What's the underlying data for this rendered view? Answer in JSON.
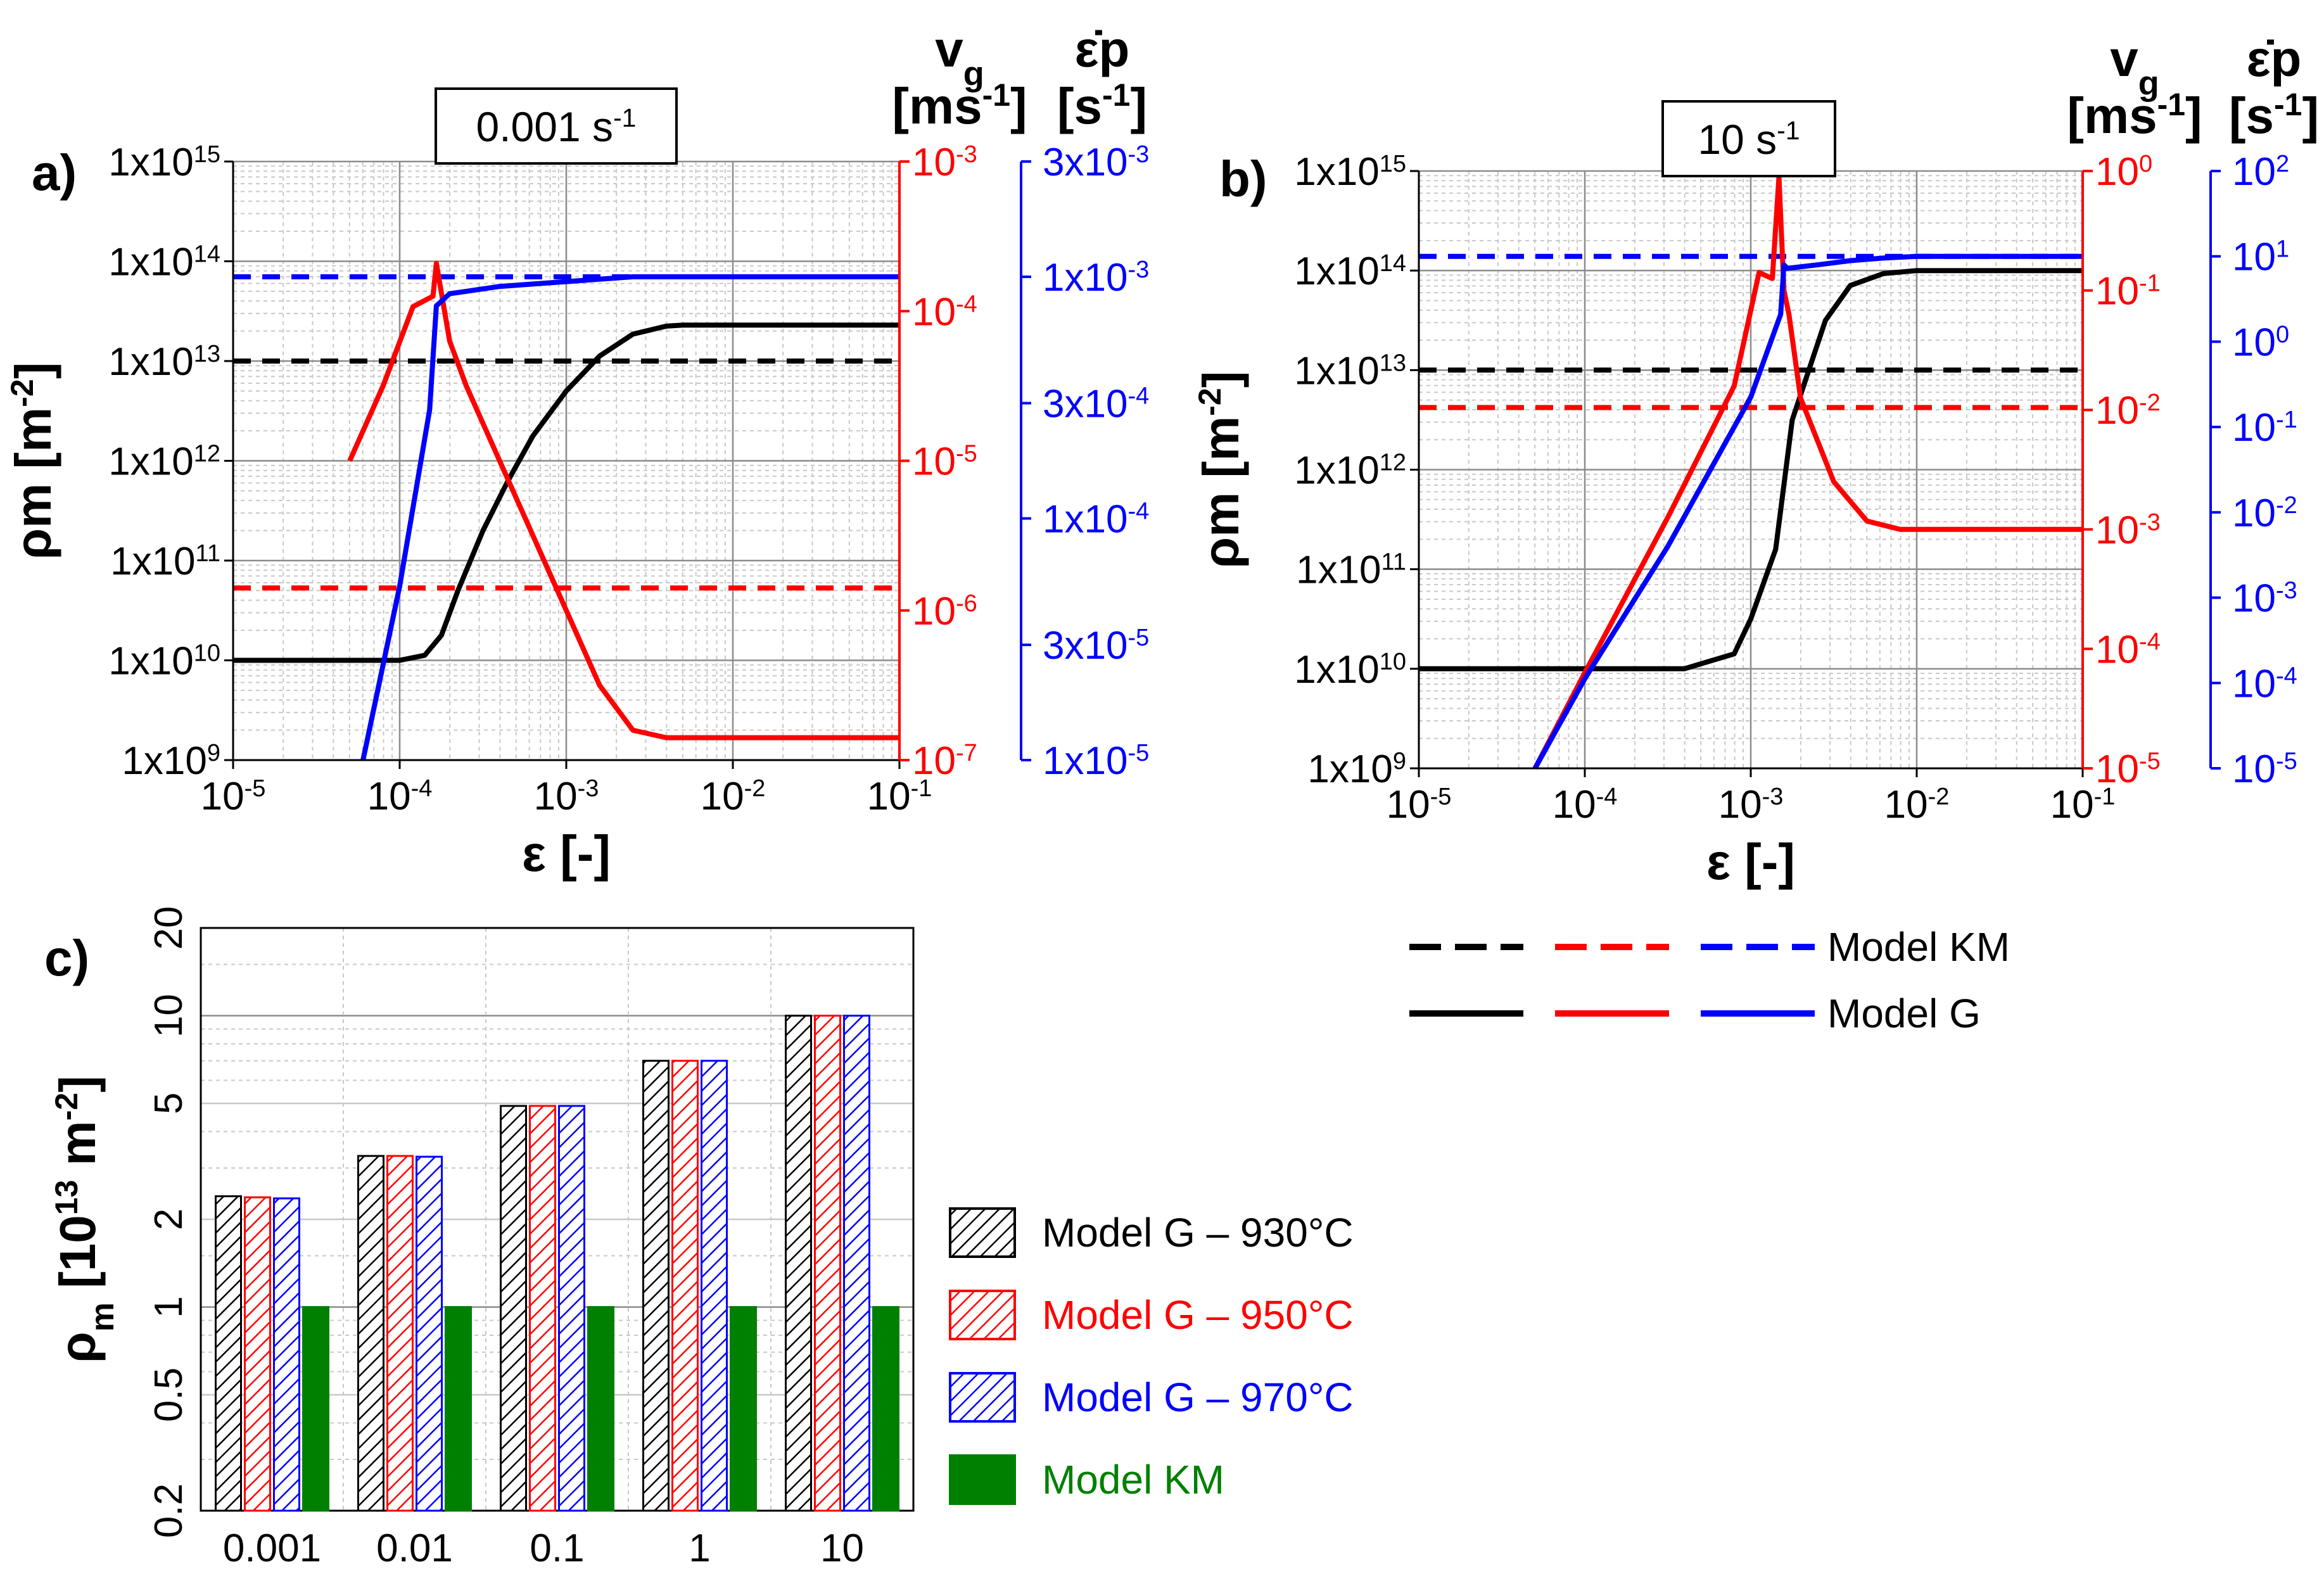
{
  "colors": {
    "black": "#000000",
    "red": "#ff0000",
    "blue": "#0000ff",
    "green": "#008000",
    "grid": "#c8c8c8",
    "grid_major": "#8c8c8c"
  },
  "chart_data": [
    {
      "id": "a",
      "type": "line",
      "panel_label": "a)",
      "rate_box": {
        "base": "0.001 s",
        "sup": "-1"
      },
      "xlabel": "ε [-]",
      "ylabel": {
        "base": "ρm [m",
        "sup": "-2",
        "tail": "]"
      },
      "xlim_log10": [
        -5,
        -1
      ],
      "x_ticks": [
        {
          "base": "10",
          "sup": "-5"
        },
        {
          "base": "10",
          "sup": "-4"
        },
        {
          "base": "10",
          "sup": "-3"
        },
        {
          "base": "10",
          "sup": "-2"
        },
        {
          "base": "10",
          "sup": "-1"
        }
      ],
      "y_left_ticks": [
        {
          "base": "1x10",
          "sup": "9"
        },
        {
          "base": "1x10",
          "sup": "10"
        },
        {
          "base": "1x10",
          "sup": "11"
        },
        {
          "base": "1x10",
          "sup": "12"
        },
        {
          "base": "1x10",
          "sup": "13"
        },
        {
          "base": "1x10",
          "sup": "14"
        },
        {
          "base": "1x10",
          "sup": "15"
        }
      ],
      "y_left_log10": [
        9,
        15
      ],
      "red_axis": {
        "title": "vg",
        "unit": {
          "base": "[ms",
          "sup": "-1",
          "tail": "]"
        },
        "log10": [
          -7,
          -3
        ],
        "ticks": [
          {
            "base": "10",
            "sup": "-7"
          },
          {
            "base": "10",
            "sup": "-6"
          },
          {
            "base": "10",
            "sup": "-5"
          },
          {
            "base": "10",
            "sup": "-4"
          },
          {
            "base": "10",
            "sup": "-3"
          }
        ]
      },
      "blue_axis": {
        "title": "ε̇p",
        "unit": {
          "base": "[s",
          "sup": "-1",
          "tail": "]"
        },
        "log10": [
          -5,
          -2.523
        ],
        "ticks": [
          {
            "base": "1x10",
            "sup": "-5",
            "v": -5
          },
          {
            "base": "3x10",
            "sup": "-5",
            "v": -4.523
          },
          {
            "base": "1x10",
            "sup": "-4",
            "v": -4
          },
          {
            "base": "3x10",
            "sup": "-4",
            "v": -3.523
          },
          {
            "base": "1x10",
            "sup": "-3",
            "v": -3
          },
          {
            "base": "3x10",
            "sup": "-3",
            "v": -2.523
          }
        ]
      },
      "series": [
        {
          "name": "Model KM ρm",
          "style": "dashed",
          "color": "black",
          "axis": "left",
          "x": [
            -5,
            -1
          ],
          "y": [
            13,
            13
          ]
        },
        {
          "name": "Model KM vg",
          "style": "dashed",
          "color": "red",
          "axis": "red",
          "x": [
            -5,
            -1
          ],
          "y": [
            -5.85,
            -5.85
          ]
        },
        {
          "name": "Model KM ε̇p",
          "style": "dashed",
          "color": "blue",
          "axis": "blue",
          "x": [
            -5,
            -1
          ],
          "y": [
            -3,
            -3
          ]
        },
        {
          "name": "Model G ρm",
          "style": "solid",
          "color": "black",
          "axis": "left",
          "x": [
            -5,
            -4,
            -3.85,
            -3.75,
            -3.65,
            -3.5,
            -3.35,
            -3.2,
            -3.0,
            -2.8,
            -2.6,
            -2.4,
            -2.3,
            -1
          ],
          "y": [
            10,
            10,
            10.05,
            10.25,
            10.7,
            11.3,
            11.8,
            12.25,
            12.7,
            13.05,
            13.27,
            13.35,
            13.36,
            13.36
          ]
        },
        {
          "name": "Model G vg",
          "style": "solid",
          "color": "red",
          "axis": "red",
          "x": [
            -4.3,
            -4.1,
            -3.92,
            -3.8,
            -3.78,
            -3.7,
            -3.6,
            -3.4,
            -3.2,
            -3.0,
            -2.8,
            -2.6,
            -2.4,
            -1
          ],
          "y": [
            -5.0,
            -4.5,
            -3.97,
            -3.9,
            -3.68,
            -4.2,
            -4.5,
            -5.0,
            -5.5,
            -6.0,
            -6.5,
            -6.8,
            -6.85,
            -6.85
          ]
        },
        {
          "name": "Model G ε̇p",
          "style": "solid",
          "color": "blue",
          "axis": "blue",
          "x": [
            -4.22,
            -4.0,
            -3.82,
            -3.78,
            -3.7,
            -3.6,
            -3.4,
            -3.2,
            -3.0,
            -2.8,
            -2.6,
            -2.4,
            -1
          ],
          "y": [
            -5.0,
            -4.28,
            -3.55,
            -3.12,
            -3.07,
            -3.06,
            -3.04,
            -3.03,
            -3.02,
            -3.01,
            -3.0,
            -3.0,
            -3.0
          ]
        }
      ]
    },
    {
      "id": "b",
      "type": "line",
      "panel_label": "b)",
      "rate_box": {
        "base": "10 s",
        "sup": "-1"
      },
      "xlabel": "ε [-]",
      "ylabel": {
        "base": "ρm [m",
        "sup": "-2",
        "tail": "]"
      },
      "xlim_log10": [
        -5,
        -1
      ],
      "x_ticks": [
        {
          "base": "10",
          "sup": "-5"
        },
        {
          "base": "10",
          "sup": "-4"
        },
        {
          "base": "10",
          "sup": "-3"
        },
        {
          "base": "10",
          "sup": "-2"
        },
        {
          "base": "10",
          "sup": "-1"
        }
      ],
      "y_left_ticks": [
        {
          "base": "1x10",
          "sup": "9"
        },
        {
          "base": "1x10",
          "sup": "10"
        },
        {
          "base": "1x10",
          "sup": "11"
        },
        {
          "base": "1x10",
          "sup": "12"
        },
        {
          "base": "1x10",
          "sup": "13"
        },
        {
          "base": "1x10",
          "sup": "14"
        },
        {
          "base": "1x10",
          "sup": "15"
        }
      ],
      "y_left_log10": [
        9,
        15
      ],
      "red_axis": {
        "title": "vg",
        "unit": {
          "base": "[ms",
          "sup": "-1",
          "tail": "]"
        },
        "log10": [
          -5,
          0
        ],
        "ticks": [
          {
            "base": "10",
            "sup": "-5"
          },
          {
            "base": "10",
            "sup": "-4"
          },
          {
            "base": "10",
            "sup": "-3"
          },
          {
            "base": "10",
            "sup": "-2"
          },
          {
            "base": "10",
            "sup": "-1"
          },
          {
            "base": "10",
            "sup": "0"
          }
        ]
      },
      "blue_axis": {
        "title": "ε̇p",
        "unit": {
          "base": "[s",
          "sup": "-1",
          "tail": "]"
        },
        "log10": [
          -5,
          2
        ],
        "ticks": [
          {
            "base": "10",
            "sup": "-5",
            "v": -5
          },
          {
            "base": "10",
            "sup": "-4",
            "v": -4
          },
          {
            "base": "10",
            "sup": "-3",
            "v": -3
          },
          {
            "base": "10",
            "sup": "-2",
            "v": -2
          },
          {
            "base": "10",
            "sup": "-1",
            "v": -1
          },
          {
            "base": "10",
            "sup": "0",
            "v": 0
          },
          {
            "base": "10",
            "sup": "1",
            "v": 1
          },
          {
            "base": "10",
            "sup": "2",
            "v": 2
          }
        ]
      },
      "series": [
        {
          "name": "Model KM ρm",
          "style": "dashed",
          "color": "black",
          "axis": "left",
          "x": [
            -5,
            -1
          ],
          "y": [
            13,
            13
          ]
        },
        {
          "name": "Model KM vg",
          "style": "dashed",
          "color": "red",
          "axis": "red",
          "x": [
            -5,
            -1
          ],
          "y": [
            -1.98,
            -1.98
          ]
        },
        {
          "name": "Model KM ε̇p",
          "style": "dashed",
          "color": "blue",
          "axis": "blue",
          "x": [
            -5,
            -1
          ],
          "y": [
            1,
            1
          ]
        },
        {
          "name": "Model G ρm",
          "style": "solid",
          "color": "black",
          "axis": "left",
          "x": [
            -5,
            -3.4,
            -3.1,
            -3.0,
            -2.85,
            -2.75,
            -2.65,
            -2.55,
            -2.4,
            -2.2,
            -2.0,
            -1
          ],
          "y": [
            10,
            10,
            10.15,
            10.5,
            11.2,
            12.5,
            13.0,
            13.5,
            13.85,
            13.97,
            14,
            14
          ]
        },
        {
          "name": "Model G vg",
          "style": "solid",
          "color": "red",
          "axis": "red",
          "x": [
            -4.3,
            -4.0,
            -3.5,
            -3.1,
            -2.95,
            -2.87,
            -2.83,
            -2.8,
            -2.77,
            -2.7,
            -2.5,
            -2.3,
            -2.1,
            -1
          ],
          "y": [
            -5.0,
            -4.2,
            -2.9,
            -1.8,
            -0.85,
            -0.9,
            -0.05,
            -1.0,
            -1.2,
            -1.9,
            -2.6,
            -2.93,
            -3.0,
            -3.0
          ]
        },
        {
          "name": "Model G ε̇p",
          "style": "solid",
          "color": "blue",
          "axis": "blue",
          "x": [
            -4.3,
            -4.0,
            -3.5,
            -3.0,
            -2.82,
            -2.8,
            -2.78,
            -2.6,
            -2.4,
            -2.2,
            -2.0,
            -1
          ],
          "y": [
            -5.0,
            -3.95,
            -2.4,
            -0.65,
            0.32,
            0.9,
            0.86,
            0.9,
            0.95,
            0.98,
            1.0,
            1.0
          ]
        }
      ]
    },
    {
      "id": "c",
      "type": "bar",
      "panel_label": "c)",
      "ylabel": {
        "base": "ρ",
        "sub": "m",
        "mid": " [10",
        "sup": "13",
        "tail": " m",
        "sup2": "-2",
        "end": "]"
      },
      "categories": [
        "0.001",
        "0.01",
        "0.1",
        "1",
        "10"
      ],
      "y_ticks": [
        "0.2",
        "0.5",
        "1",
        "2",
        "5",
        "10",
        "20"
      ],
      "ylim": [
        0.2,
        20
      ],
      "yscale": "log",
      "series": [
        {
          "name": "Model G – 930°C",
          "color": "black",
          "pattern": "hatch",
          "values": [
            2.4,
            3.3,
            4.9,
            7.0,
            10.0
          ]
        },
        {
          "name": "Model G – 950°C",
          "color": "red",
          "pattern": "hatch",
          "values": [
            2.38,
            3.3,
            4.9,
            7.0,
            10.0
          ]
        },
        {
          "name": "Model G – 970°C",
          "color": "blue",
          "pattern": "hatch",
          "values": [
            2.36,
            3.28,
            4.9,
            7.0,
            10.0
          ]
        },
        {
          "name": "Model KM",
          "color": "green",
          "pattern": "solid",
          "values": [
            1,
            1,
            1,
            1,
            1
          ]
        }
      ]
    }
  ],
  "legend_top": {
    "items": [
      {
        "label": "Model KM",
        "style": "dashed"
      },
      {
        "label": "Model G",
        "style": "solid"
      }
    ]
  },
  "legend_bars": {
    "items": [
      {
        "label": "Model G – 930°C",
        "color": "black"
      },
      {
        "label": "Model G – 950°C",
        "color": "red"
      },
      {
        "label": "Model G – 970°C",
        "color": "blue"
      },
      {
        "label": "Model KM",
        "color": "green"
      }
    ]
  }
}
